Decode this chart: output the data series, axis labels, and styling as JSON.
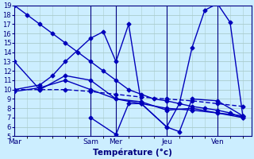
{
  "background_color": "#cceeff",
  "grid_color": "#aacccc",
  "line_color": "#0000bb",
  "ylim": [
    5,
    19
  ],
  "yticks": [
    5,
    6,
    7,
    8,
    9,
    10,
    11,
    12,
    13,
    14,
    15,
    16,
    17,
    18,
    19
  ],
  "xlabel": "Température (°c)",
  "day_labels": [
    "Mar",
    "Sam",
    "Mer",
    "Jeu",
    "Ven"
  ],
  "day_tick_x": [
    0,
    18,
    24,
    36,
    48
  ],
  "xlim": [
    0,
    56
  ],
  "series": [
    {
      "x": [
        0,
        3,
        6,
        9,
        12,
        15,
        18,
        21,
        24,
        27,
        30,
        33,
        36,
        39,
        42,
        45,
        48,
        51,
        54
      ],
      "y": [
        19,
        18,
        17,
        16,
        15,
        14,
        13,
        12,
        11,
        10,
        9.5,
        9,
        8.8,
        8.5,
        8.2,
        8.0,
        7.8,
        7.5,
        7.0
      ],
      "linewidth": 1.0,
      "dashes": null
    },
    {
      "x": [
        0,
        6,
        12,
        18,
        24,
        30,
        36,
        42,
        48,
        54
      ],
      "y": [
        13,
        10,
        11.5,
        11,
        9,
        8.5,
        8,
        7.8,
        7.5,
        7.2
      ],
      "linewidth": 1.0,
      "dashes": null
    },
    {
      "x": [
        0,
        6,
        12,
        18,
        24,
        30,
        36,
        42,
        48,
        54
      ],
      "y": [
        10,
        10,
        10,
        9.8,
        9.5,
        9.2,
        9.0,
        8.8,
        8.5,
        8.2
      ],
      "linewidth": 1.0,
      "dashes": [
        4,
        2
      ]
    },
    {
      "x": [
        0,
        6,
        9,
        12,
        18,
        21,
        24,
        27,
        30,
        36,
        39,
        42,
        45,
        48,
        51,
        54
      ],
      "y": [
        10,
        10.5,
        11.5,
        13,
        15.5,
        16.2,
        13,
        17,
        8.5,
        6,
        8.5,
        14.5,
        18.5,
        19.2,
        17.2,
        7.2
      ],
      "linewidth": 1.0,
      "dashes": null
    },
    {
      "x": [
        0,
        6,
        12,
        18,
        24,
        30,
        36,
        42,
        48,
        54
      ],
      "y": [
        9.8,
        10.2,
        11,
        10,
        9,
        8.7,
        7.8,
        8,
        7.5,
        7.0
      ],
      "linewidth": 1.0,
      "dashes": null
    },
    {
      "x": [
        18,
        24,
        27,
        30,
        36,
        39,
        42,
        48,
        54
      ],
      "y": [
        7.0,
        5.2,
        8.5,
        8.5,
        6.0,
        5.5,
        9.0,
        8.8,
        7.2
      ],
      "linewidth": 1.0,
      "dashes": null
    }
  ]
}
